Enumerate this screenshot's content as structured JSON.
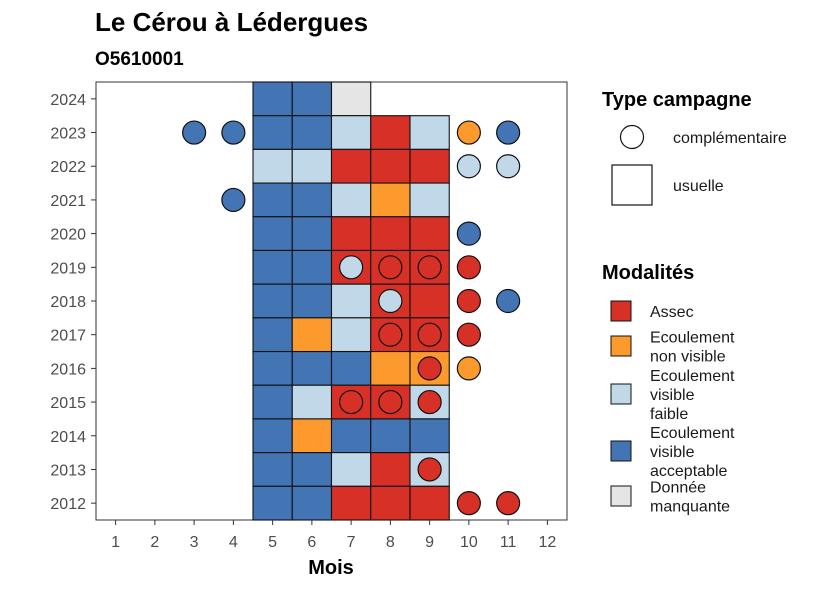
{
  "chart_data": {
    "type": "heatmap",
    "title": "Le Cérou à Lédergues",
    "subtitle": "O5610001",
    "xlabel": "Mois",
    "ylabel": "",
    "x_ticks": [
      1,
      2,
      3,
      4,
      5,
      6,
      7,
      8,
      9,
      10,
      11,
      12
    ],
    "y_ticks": [
      2012,
      2013,
      2014,
      2015,
      2016,
      2017,
      2018,
      2019,
      2020,
      2021,
      2022,
      2023,
      2024
    ],
    "xlim": [
      0.5,
      12.5
    ],
    "ylim": [
      2011.5,
      2024.5
    ],
    "modalites": [
      {
        "key": "A",
        "label_lines": [
          "Assec"
        ],
        "color": "#d73027"
      },
      {
        "key": "NV",
        "label_lines": [
          "Ecoulement",
          "non visible"
        ],
        "color": "#fd9a2e"
      },
      {
        "key": "F",
        "label_lines": [
          "Ecoulement",
          "visible",
          "faible"
        ],
        "color": "#c0d8e8"
      },
      {
        "key": "V",
        "label_lines": [
          "Ecoulement",
          "visible",
          "acceptable"
        ],
        "color": "#4374b3"
      },
      {
        "key": "M",
        "label_lines": [
          "Donnée",
          "manquante"
        ],
        "color": "#e5e5e5"
      }
    ],
    "type_campagne": [
      {
        "key": "comp",
        "label": "complémentaire",
        "shape": "circle"
      },
      {
        "key": "usu",
        "label": "usuelle",
        "shape": "square"
      }
    ],
    "legend_titles": {
      "campagne": "Type campagne",
      "modalites": "Modalités"
    },
    "legend_placement": "right",
    "grid": false,
    "usuelle_observations": [
      {
        "year": 2024,
        "months": [
          "V",
          "V",
          "M",
          null,
          null
        ]
      },
      {
        "year": 2023,
        "months": [
          "V",
          "V",
          "F",
          "A",
          "F"
        ]
      },
      {
        "year": 2022,
        "months": [
          "F",
          "F",
          "A",
          "A",
          "A"
        ]
      },
      {
        "year": 2021,
        "months": [
          "V",
          "V",
          "F",
          "NV",
          "F"
        ]
      },
      {
        "year": 2020,
        "months": [
          "V",
          "V",
          "A",
          "A",
          "A"
        ]
      },
      {
        "year": 2019,
        "months": [
          "V",
          "V",
          "A",
          "A",
          "A"
        ]
      },
      {
        "year": 2018,
        "months": [
          "V",
          "V",
          "F",
          "A",
          "A"
        ]
      },
      {
        "year": 2017,
        "months": [
          "V",
          "NV",
          "F",
          "A",
          "A"
        ]
      },
      {
        "year": 2016,
        "months": [
          "V",
          "V",
          "V",
          "NV",
          "NV"
        ]
      },
      {
        "year": 2015,
        "months": [
          "V",
          "F",
          "A",
          "A",
          "F"
        ]
      },
      {
        "year": 2014,
        "months": [
          "V",
          "NV",
          "V",
          "V",
          "V"
        ]
      },
      {
        "year": 2013,
        "months": [
          "V",
          "V",
          "F",
          "A",
          "F"
        ]
      },
      {
        "year": 2012,
        "months": [
          "V",
          "V",
          "A",
          "A",
          "A"
        ]
      }
    ],
    "usuelle_first_month": 5,
    "complementaire_observations": [
      {
        "year": 2023,
        "month": 3,
        "m": "V"
      },
      {
        "year": 2023,
        "month": 4,
        "m": "V"
      },
      {
        "year": 2023,
        "month": 10,
        "m": "NV"
      },
      {
        "year": 2023,
        "month": 11,
        "m": "V"
      },
      {
        "year": 2022,
        "month": 10,
        "m": "F"
      },
      {
        "year": 2022,
        "month": 11,
        "m": "F"
      },
      {
        "year": 2021,
        "month": 4,
        "m": "V"
      },
      {
        "year": 2020,
        "month": 10,
        "m": "V"
      },
      {
        "year": 2019,
        "month": 7,
        "m": "F"
      },
      {
        "year": 2019,
        "month": 8,
        "m": "A"
      },
      {
        "year": 2019,
        "month": 9,
        "m": "A"
      },
      {
        "year": 2019,
        "month": 10,
        "m": "A"
      },
      {
        "year": 2018,
        "month": 8,
        "m": "F"
      },
      {
        "year": 2018,
        "month": 10,
        "m": "A"
      },
      {
        "year": 2018,
        "month": 11,
        "m": "V"
      },
      {
        "year": 2017,
        "month": 8,
        "m": "A"
      },
      {
        "year": 2017,
        "month": 9,
        "m": "A"
      },
      {
        "year": 2017,
        "month": 10,
        "m": "A"
      },
      {
        "year": 2016,
        "month": 9,
        "m": "A"
      },
      {
        "year": 2016,
        "month": 10,
        "m": "NV"
      },
      {
        "year": 2015,
        "month": 7,
        "m": "A"
      },
      {
        "year": 2015,
        "month": 8,
        "m": "A"
      },
      {
        "year": 2015,
        "month": 9,
        "m": "A"
      },
      {
        "year": 2013,
        "month": 9,
        "m": "A"
      },
      {
        "year": 2012,
        "month": 10,
        "m": "A"
      },
      {
        "year": 2012,
        "month": 11,
        "m": "A"
      }
    ]
  }
}
